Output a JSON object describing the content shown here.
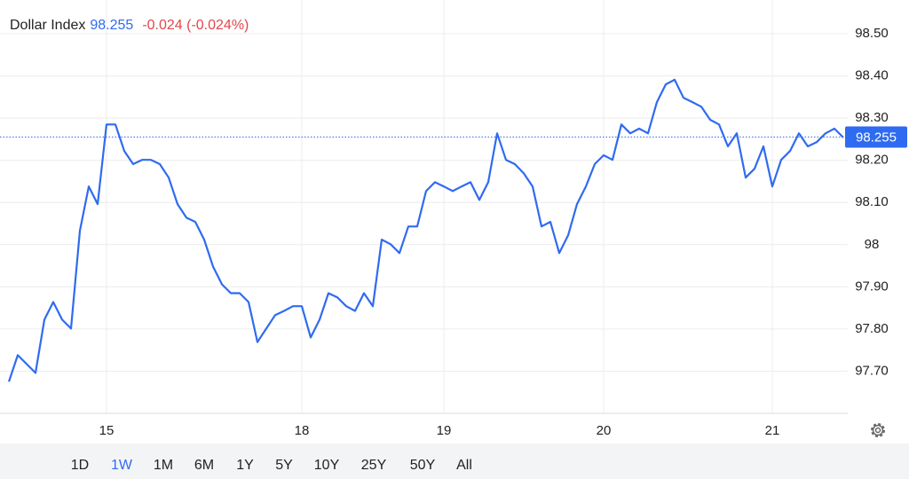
{
  "chart_data": {
    "type": "line",
    "title": "Dollar Index",
    "price": 98.255,
    "change_label": "-0.024 (-0.024%)",
    "categories": [
      null,
      null,
      null,
      null,
      null,
      null,
      null,
      null,
      null,
      null,
      null,
      "15",
      null,
      null,
      null,
      null,
      null,
      null,
      null,
      null,
      null,
      null,
      null,
      null,
      null,
      null,
      null,
      null,
      null,
      null,
      null,
      null,
      null,
      "18",
      null,
      null,
      null,
      null,
      null,
      null,
      null,
      null,
      null,
      null,
      null,
      null,
      null,
      null,
      null,
      "19",
      null,
      null,
      null,
      null,
      null,
      null,
      null,
      null,
      null,
      null,
      null,
      null,
      null,
      null,
      null,
      null,
      null,
      "20",
      null,
      null,
      null,
      null,
      null,
      null,
      null,
      null,
      null,
      null,
      null,
      null,
      null,
      null,
      null,
      null,
      null,
      null,
      "21",
      null,
      null,
      null,
      null,
      null,
      null,
      null,
      null
    ],
    "series": [
      {
        "name": "Dollar Index",
        "color": "#2f6bf0",
        "values": [
          97.675,
          97.738,
          97.717,
          97.696,
          97.822,
          97.864,
          97.822,
          97.801,
          98.033,
          98.138,
          98.096,
          98.285,
          98.285,
          98.222,
          98.191,
          98.201,
          98.201,
          98.191,
          98.159,
          98.096,
          98.064,
          98.054,
          98.012,
          97.948,
          97.906,
          97.885,
          97.885,
          97.864,
          97.769,
          97.801,
          97.833,
          97.843,
          97.854,
          97.854,
          97.78,
          97.822,
          97.885,
          97.875,
          97.854,
          97.843,
          97.885,
          97.854,
          98.012,
          98.001,
          97.98,
          98.043,
          98.043,
          98.127,
          98.148,
          98.138,
          98.127,
          98.138,
          98.148,
          98.106,
          98.148,
          98.264,
          98.201,
          98.191,
          98.169,
          98.138,
          98.043,
          98.054,
          97.98,
          98.022,
          98.096,
          98.138,
          98.191,
          98.212,
          98.201,
          98.285,
          98.264,
          98.275,
          98.264,
          98.338,
          98.38,
          98.391,
          98.348,
          98.338,
          98.327,
          98.296,
          98.285,
          98.233,
          98.264,
          98.159,
          98.18,
          98.233,
          98.138,
          98.201,
          98.222,
          98.264,
          98.233,
          98.243,
          98.264,
          98.275,
          98.254
        ]
      }
    ],
    "ylim": [
      97.6,
      98.58
    ],
    "yticks": [
      {
        "value": 97.7,
        "label": "97.70"
      },
      {
        "value": 97.8,
        "label": "97.80"
      },
      {
        "value": 97.9,
        "label": "97.90"
      },
      98,
      {
        "value": 98.1,
        "label": "98.10"
      },
      {
        "value": 98.2,
        "label": "98.20"
      },
      {
        "value": 98.3,
        "label": "98.30"
      },
      {
        "value": 98.4,
        "label": "98.40"
      },
      {
        "value": 98.5,
        "label": "98.50"
      }
    ],
    "grid": true,
    "ranges": [
      "1D",
      "1W",
      "1M",
      "6M",
      "1Y",
      "5Y",
      "10Y",
      "25Y",
      "50Y",
      "All"
    ],
    "selected_range": "1W"
  }
}
